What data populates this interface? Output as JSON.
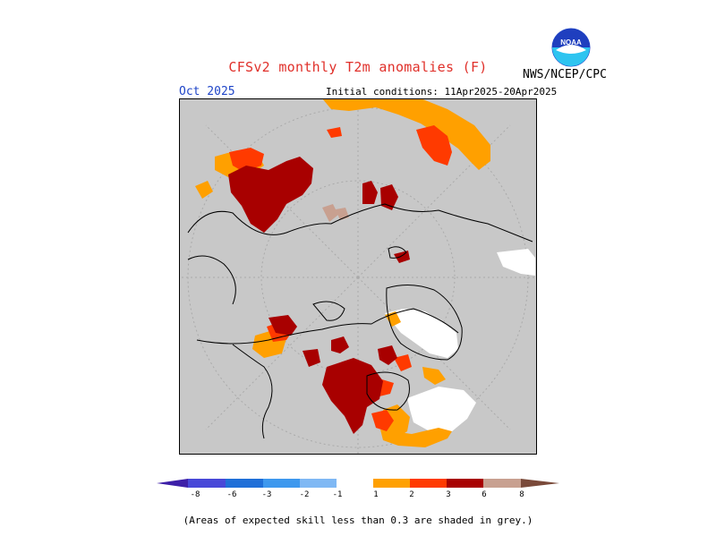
{
  "header": {
    "title": "CFSv2 monthly T2m anomalies (F)",
    "agency": "NWS/NCEP/CPC",
    "logo_text": "NOAA",
    "month": "Oct 2025",
    "initial_conditions": "Initial conditions: 11Apr2025-20Apr2025"
  },
  "colorbar": {
    "labels": [
      "-8",
      "-6",
      "-3",
      "-2",
      "-1",
      "1",
      "2",
      "3",
      "6",
      "8"
    ],
    "colors": [
      "#3d1fa8",
      "#4848d8",
      "#1f6fd8",
      "#3d98ee",
      "#7fb8f4",
      "#ffffff",
      "#ffa000",
      "#ff3a00",
      "#a80000",
      "#c8a090",
      "#7a4a3a"
    ]
  },
  "map": {
    "background": "#c8c8c8",
    "grey_meaning": "low skill",
    "anomaly_colors": {
      "plus_1_2": "#ffa000",
      "plus_2_3": "#ff3a00",
      "plus_3_6": "#a80000",
      "plus_6_8": "#c8a090"
    }
  },
  "footnote": "(Areas of expected skill less than 0.3 are shaded in grey.)"
}
